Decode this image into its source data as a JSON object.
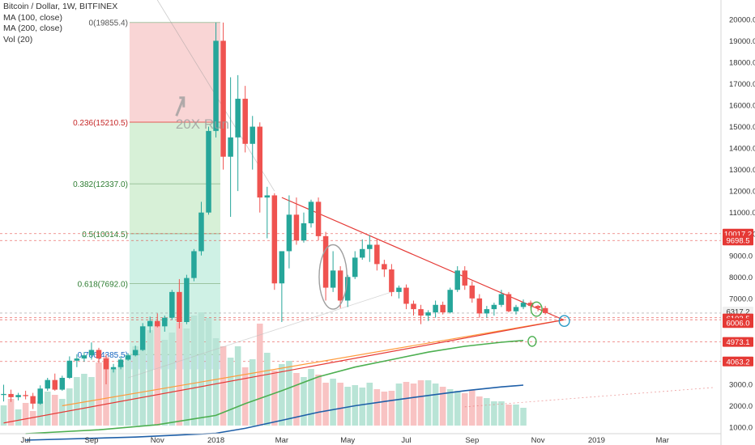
{
  "header": {
    "symbol_line": "Bitcoin / Dollar, 1W, BITFINEX",
    "indicators": [
      "MA (100, close)",
      "MA (200, close)",
      "Vol (20)"
    ]
  },
  "colors": {
    "up": "#26a69a",
    "down": "#ef5350",
    "vol_up": "#b9e4d6",
    "vol_down": "#f8c3c3",
    "ma100": "#4caf50",
    "ma200": "#1e5fa8",
    "triangle_line": "#e53935",
    "support_line": "#ff9a3c",
    "fib_top": "#f4b3b3",
    "fib_green": "#b7e4b7",
    "fib_teal": "#a8e6cf",
    "fib_blue": "#a7d3ec"
  },
  "chart_data": {
    "type": "candlestick",
    "title": "Bitcoin / Dollar, 1W, BITFINEX",
    "y_axis": {
      "ticks": [
        1000,
        2000,
        3000,
        4000,
        5000,
        6000,
        7000,
        8000,
        9000,
        10000,
        11000,
        12000,
        13000,
        14000,
        15000,
        16000,
        17000,
        18000,
        19000,
        20000
      ],
      "range": [
        700,
        20900
      ]
    },
    "x_axis": {
      "labels": [
        "Jul",
        "Sep",
        "Nov",
        "2018",
        "Mar",
        "May",
        "Jul",
        "Sep",
        "Nov",
        "2019",
        "Mar"
      ],
      "label_weeks": [
        0,
        9,
        18,
        26,
        35,
        44,
        52,
        61,
        70,
        78,
        87
      ],
      "range_weeks": [
        -3.5,
        95
      ]
    },
    "price_labels": [
      "10017.2",
      "9698.5",
      "6317.2",
      "6103.5",
      "6006.0",
      "4973.1",
      "4063.2"
    ],
    "fibonacci": {
      "levels": [
        {
          "label": "0(19855.4)",
          "value": 19855.4
        },
        {
          "label": "0.236(15210.5)",
          "value": 15210.5
        },
        {
          "label": "0.382(12337.0)",
          "value": 12337.0
        },
        {
          "label": "0.5(10014.5)",
          "value": 10014.5
        },
        {
          "label": "0.618(7692.0)",
          "value": 7692.0
        },
        {
          "label": "0.786(4385.5)",
          "value": 4385.5
        }
      ]
    },
    "annotation": "20X Run",
    "candles": [
      {
        "w": -3,
        "o": 2500,
        "h": 2980,
        "l": 2200,
        "c": 2550
      },
      {
        "w": -2,
        "o": 2550,
        "h": 2750,
        "l": 2180,
        "c": 2400
      },
      {
        "w": -1,
        "o": 2400,
        "h": 2600,
        "l": 2250,
        "c": 2500
      },
      {
        "w": 0,
        "o": 2500,
        "h": 2700,
        "l": 2300,
        "c": 2450
      },
      {
        "w": 1,
        "o": 2450,
        "h": 2600,
        "l": 1850,
        "c": 2100
      },
      {
        "w": 2,
        "o": 2100,
        "h": 2950,
        "l": 2050,
        "c": 2800
      },
      {
        "w": 3,
        "o": 2800,
        "h": 3300,
        "l": 2700,
        "c": 3200
      },
      {
        "w": 4,
        "o": 3200,
        "h": 3500,
        "l": 2700,
        "c": 2750
      },
      {
        "w": 5,
        "o": 2750,
        "h": 3400,
        "l": 2700,
        "c": 3300
      },
      {
        "w": 6,
        "o": 3300,
        "h": 4300,
        "l": 3250,
        "c": 4100
      },
      {
        "w": 7,
        "o": 4100,
        "h": 4400,
        "l": 3800,
        "c": 4200
      },
      {
        "w": 8,
        "o": 4200,
        "h": 4500,
        "l": 4050,
        "c": 4350
      },
      {
        "w": 9,
        "o": 4350,
        "h": 4950,
        "l": 4150,
        "c": 4600
      },
      {
        "w": 10,
        "o": 4600,
        "h": 4700,
        "l": 4000,
        "c": 4200
      },
      {
        "w": 11,
        "o": 4200,
        "h": 4400,
        "l": 3000,
        "c": 3700
      },
      {
        "w": 12,
        "o": 3700,
        "h": 3950,
        "l": 3550,
        "c": 3800
      },
      {
        "w": 13,
        "o": 3800,
        "h": 4300,
        "l": 3700,
        "c": 4150
      },
      {
        "w": 14,
        "o": 4150,
        "h": 4450,
        "l": 4100,
        "c": 4350
      },
      {
        "w": 15,
        "o": 4350,
        "h": 4800,
        "l": 4300,
        "c": 4600
      },
      {
        "w": 16,
        "o": 4600,
        "h": 5850,
        "l": 4550,
        "c": 5700
      },
      {
        "w": 17,
        "o": 5700,
        "h": 6150,
        "l": 5400,
        "c": 5950
      },
      {
        "w": 18,
        "o": 5950,
        "h": 6300,
        "l": 5650,
        "c": 5700
      },
      {
        "w": 19,
        "o": 5700,
        "h": 6200,
        "l": 5450,
        "c": 6100
      },
      {
        "w": 20,
        "o": 6100,
        "h": 7400,
        "l": 6000,
        "c": 7300
      },
      {
        "w": 21,
        "o": 7300,
        "h": 7900,
        "l": 5600,
        "c": 5900
      },
      {
        "w": 22,
        "o": 5900,
        "h": 8100,
        "l": 5800,
        "c": 7950
      },
      {
        "w": 23,
        "o": 7950,
        "h": 9300,
        "l": 7800,
        "c": 9200
      },
      {
        "w": 24,
        "o": 9200,
        "h": 11500,
        "l": 9000,
        "c": 11000
      },
      {
        "w": 25,
        "o": 11000,
        "h": 15000,
        "l": 10900,
        "c": 14800
      },
      {
        "w": 26,
        "o": 14800,
        "h": 19850,
        "l": 14500,
        "c": 19000
      },
      {
        "w": 27,
        "o": 19000,
        "h": 19850,
        "l": 13000,
        "c": 13600
      },
      {
        "w": 28,
        "o": 13600,
        "h": 17300,
        "l": 10800,
        "c": 14500
      },
      {
        "w": 29,
        "o": 14500,
        "h": 17400,
        "l": 12000,
        "c": 16300
      },
      {
        "w": 30,
        "o": 16300,
        "h": 16900,
        "l": 13800,
        "c": 14200
      },
      {
        "w": 31,
        "o": 14200,
        "h": 15500,
        "l": 13000,
        "c": 15000
      },
      {
        "w": 32,
        "o": 15000,
        "h": 15200,
        "l": 11000,
        "c": 11700
      },
      {
        "w": 33,
        "o": 11700,
        "h": 12200,
        "l": 9800,
        "c": 11800
      },
      {
        "w": 34,
        "o": 11800,
        "h": 11900,
        "l": 7400,
        "c": 7700
      },
      {
        "w": 35,
        "o": 7700,
        "h": 9000,
        "l": 5900,
        "c": 9200
      },
      {
        "w": 36,
        "o": 9200,
        "h": 11800,
        "l": 8400,
        "c": 10900
      },
      {
        "w": 37,
        "o": 10900,
        "h": 11700,
        "l": 9500,
        "c": 9700
      },
      {
        "w": 38,
        "o": 9700,
        "h": 11000,
        "l": 9600,
        "c": 10500
      },
      {
        "w": 39,
        "o": 10500,
        "h": 11600,
        "l": 10300,
        "c": 11500
      },
      {
        "w": 40,
        "o": 11500,
        "h": 11700,
        "l": 9700,
        "c": 9900
      },
      {
        "w": 41,
        "o": 9900,
        "h": 10100,
        "l": 6900,
        "c": 7500
      },
      {
        "w": 42,
        "o": 7500,
        "h": 9200,
        "l": 7300,
        "c": 8300
      },
      {
        "w": 43,
        "o": 8300,
        "h": 8500,
        "l": 6550,
        "c": 6900
      },
      {
        "w": 44,
        "o": 6900,
        "h": 8100,
        "l": 6600,
        "c": 8000
      },
      {
        "w": 45,
        "o": 8000,
        "h": 9200,
        "l": 7900,
        "c": 8900
      },
      {
        "w": 46,
        "o": 8900,
        "h": 9750,
        "l": 8800,
        "c": 9300
      },
      {
        "w": 47,
        "o": 9300,
        "h": 9950,
        "l": 8700,
        "c": 9500
      },
      {
        "w": 48,
        "o": 9500,
        "h": 9800,
        "l": 8300,
        "c": 8600
      },
      {
        "w": 49,
        "o": 8600,
        "h": 8800,
        "l": 8000,
        "c": 8350
      },
      {
        "w": 50,
        "o": 8350,
        "h": 8600,
        "l": 7100,
        "c": 7300
      },
      {
        "w": 51,
        "o": 7300,
        "h": 7600,
        "l": 7000,
        "c": 7500
      },
      {
        "w": 52,
        "o": 7500,
        "h": 7650,
        "l": 6500,
        "c": 6750
      },
      {
        "w": 53,
        "o": 6750,
        "h": 6900,
        "l": 6200,
        "c": 6500
      },
      {
        "w": 54,
        "o": 6500,
        "h": 6700,
        "l": 5800,
        "c": 6200
      },
      {
        "w": 55,
        "o": 6200,
        "h": 6450,
        "l": 5950,
        "c": 6350
      },
      {
        "w": 56,
        "o": 6350,
        "h": 6900,
        "l": 6100,
        "c": 6700
      },
      {
        "w": 57,
        "o": 6700,
        "h": 6850,
        "l": 6250,
        "c": 6350
      },
      {
        "w": 58,
        "o": 6350,
        "h": 7500,
        "l": 6300,
        "c": 7400
      },
      {
        "w": 59,
        "o": 7400,
        "h": 8500,
        "l": 7300,
        "c": 8300
      },
      {
        "w": 60,
        "o": 8300,
        "h": 8500,
        "l": 7400,
        "c": 7600
      },
      {
        "w": 61,
        "o": 7600,
        "h": 7800,
        "l": 6800,
        "c": 7000
      },
      {
        "w": 62,
        "o": 7000,
        "h": 7200,
        "l": 6100,
        "c": 6300
      },
      {
        "w": 63,
        "o": 6300,
        "h": 6650,
        "l": 6100,
        "c": 6500
      },
      {
        "w": 64,
        "o": 6500,
        "h": 6800,
        "l": 6200,
        "c": 6700
      },
      {
        "w": 65,
        "o": 6700,
        "h": 7400,
        "l": 6600,
        "c": 7200
      },
      {
        "w": 66,
        "o": 7200,
        "h": 7300,
        "l": 6350,
        "c": 6400
      },
      {
        "w": 67,
        "o": 6400,
        "h": 6700,
        "l": 6250,
        "c": 6600
      },
      {
        "w": 68,
        "o": 6600,
        "h": 6950,
        "l": 6500,
        "c": 6800
      },
      {
        "w": 69,
        "o": 6800,
        "h": 6900,
        "l": 6550,
        "c": 6650
      },
      {
        "w": 70,
        "o": 6650,
        "h": 6700,
        "l": 6400,
        "c": 6550
      },
      {
        "w": 71,
        "o": 6550,
        "h": 6650,
        "l": 6250,
        "c": 6320
      }
    ],
    "volume": [
      250,
      330,
      200,
      280,
      180,
      300,
      420,
      380,
      330,
      460,
      600,
      640,
      600,
      780,
      850,
      700,
      750,
      880,
      980,
      940,
      1180,
      1270,
      1060,
      1150,
      1270,
      1200,
      1360,
      1400,
      1330,
      1080,
      980,
      840,
      980,
      720,
      820,
      1260,
      900,
      680,
      760,
      800,
      650,
      600,
      700,
      630,
      530,
      580,
      530,
      480,
      500,
      470,
      530,
      450,
      420,
      430,
      520,
      540,
      520,
      560,
      560,
      520,
      480,
      450,
      430,
      400,
      440,
      360,
      340,
      300,
      300,
      260,
      260,
      220
    ],
    "ma100": [
      [
        0,
        700
      ],
      [
        10,
        880
      ],
      [
        18,
        1120
      ],
      [
        26,
        1550
      ],
      [
        30,
        2100
      ],
      [
        35,
        2700
      ],
      [
        40,
        3350
      ],
      [
        45,
        3800
      ],
      [
        50,
        4150
      ],
      [
        55,
        4500
      ],
      [
        60,
        4770
      ],
      [
        65,
        4960
      ],
      [
        68,
        5040
      ]
    ],
    "ma200": [
      [
        0,
        400
      ],
      [
        15,
        540
      ],
      [
        26,
        720
      ],
      [
        30,
        950
      ],
      [
        35,
        1320
      ],
      [
        40,
        1700
      ],
      [
        45,
        2000
      ],
      [
        50,
        2250
      ],
      [
        55,
        2480
      ],
      [
        60,
        2700
      ],
      [
        65,
        2880
      ],
      [
        68,
        2960
      ]
    ],
    "trendlines": {
      "descending": [
        [
          35,
          11700
        ],
        [
          73.5,
          6000
        ]
      ],
      "ascending_red": [
        [
          -3,
          1200
        ],
        [
          73.5,
          6000
        ]
      ],
      "ascending_orange": [
        [
          5,
          2000
        ],
        [
          73.5,
          6000
        ]
      ],
      "faint_diagonal": [
        [
          18,
          20900
        ],
        [
          34,
          12000
        ]
      ],
      "faint_baseline": [
        [
          14,
          3300
        ],
        [
          50,
          7300
        ]
      ],
      "faint_dotted": [
        [
          60,
          1950
        ],
        [
          94,
          2850
        ]
      ]
    },
    "ellipses": [
      {
        "cx": 42,
        "cy": 8000,
        "rx": 1.9,
        "ry": 1500,
        "stroke": "#9e9e9e"
      },
      {
        "cx": 69.8,
        "cy": 6500,
        "rx": 0.75,
        "ry": 330,
        "stroke": "#4caf50"
      },
      {
        "cx": 69.2,
        "cy": 5000,
        "rx": 0.55,
        "ry": 230,
        "stroke": "#4caf50"
      },
      {
        "cx": 73.6,
        "cy": 5950,
        "rx": 0.7,
        "ry": 250,
        "stroke": "#2a9bc6"
      }
    ]
  }
}
